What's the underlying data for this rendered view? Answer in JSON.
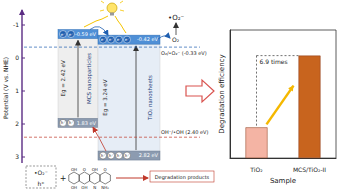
{
  "diagram": {
    "potential_axis": {
      "label": "Potential (V vs. NHE)",
      "ticks": [
        -1,
        0,
        1,
        2,
        3
      ]
    },
    "light_product": "•O₂⁻",
    "o2_couple": {
      "species": "O₂",
      "label": "O₂/•O₂⁻ (-0.33 eV)",
      "potential": -0.33
    },
    "oh_couple": {
      "label": "OH⁻/•OH (2.40 eV)",
      "potential": 2.4
    },
    "electron": "e⁻",
    "hole": "h⁺",
    "semiconductors": [
      {
        "name": "MCS nanoparticles",
        "gap_label": "Eg = 2.42 eV",
        "cb": -0.59,
        "cb_label": "-0.59 eV",
        "vb": 1.83,
        "vb_label": "1.83 eV"
      },
      {
        "name": "TiO₂ nanosheets",
        "gap_label": "Eg = 3.24 eV",
        "cb": -0.42,
        "cb_label": "-0.42 eV",
        "vb": 2.82,
        "vb_label": "2.82 eV"
      }
    ],
    "reaction": {
      "reactants": [
        "•O₂⁻",
        "h⁺"
      ],
      "plus": "+",
      "molecule_atoms": [
        "OH",
        "O",
        "OH",
        "O",
        "OH",
        "OH",
        "N",
        "NH₂"
      ],
      "product": "Degradation products"
    }
  },
  "chart_data": {
    "type": "bar",
    "y_label": "Degradation efficiency",
    "x_label": "Sample",
    "categories": [
      "TiO₂",
      "MCS/TiO₂-II"
    ],
    "values": [
      24,
      80
    ],
    "colors": [
      "#f4b4a4",
      "#c8641e"
    ],
    "ylim": [
      0,
      100
    ],
    "tick_labels": "x",
    "grid": false,
    "annotation": "6.9 times"
  }
}
